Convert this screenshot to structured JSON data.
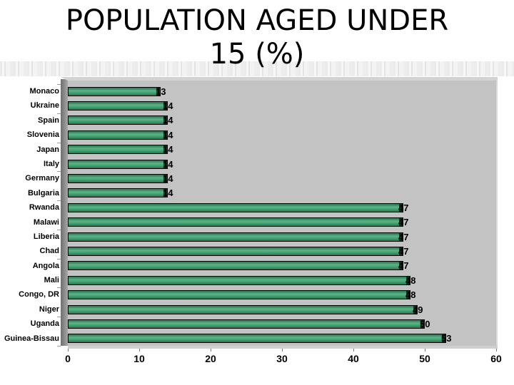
{
  "slide": {
    "background_color": "#ffffff"
  },
  "title": {
    "text": "POPULATION AGED UNDER 15 (%)"
  },
  "chart_data": {
    "type": "bar",
    "orientation": "horizontal",
    "title": "POPULATION AGED UNDER 15 (%)",
    "categories": [
      "Monaco",
      "Ukraine",
      "Spain",
      "Slovenia",
      "Japan",
      "Italy",
      "Germany",
      "Bulgaria",
      "Rwanda",
      "Malawi",
      "Liberia",
      "Chad",
      "Angola",
      "Mali",
      "Congo, DR",
      "Niger",
      "Uganda",
      "Guinea-Bissau"
    ],
    "values": [
      13,
      14,
      14,
      14,
      14,
      14,
      14,
      14,
      47,
      47,
      47,
      47,
      47,
      48,
      48,
      49,
      50,
      53
    ],
    "data_labels": [
      "13",
      "14",
      "14",
      "14",
      "14",
      "14",
      "14",
      "14",
      "47",
      "47",
      "47",
      "47",
      "47",
      "48",
      "48",
      "49",
      "50",
      "53"
    ],
    "xlabel": "",
    "ylabel": "",
    "xlim": [
      0,
      60
    ],
    "x_ticks": [
      0,
      10,
      20,
      30,
      40,
      50,
      60
    ],
    "x_tick_labels": [
      "0",
      "10",
      "20",
      "30",
      "40",
      "50",
      "60"
    ],
    "grid": false,
    "legend": false,
    "colors": {
      "bar_fill": "#3f9c6d",
      "bar_outline": "#000000",
      "plot_background": "#c3c3c3",
      "axis_wall": "#8d8d8d",
      "text": "#000000"
    }
  }
}
